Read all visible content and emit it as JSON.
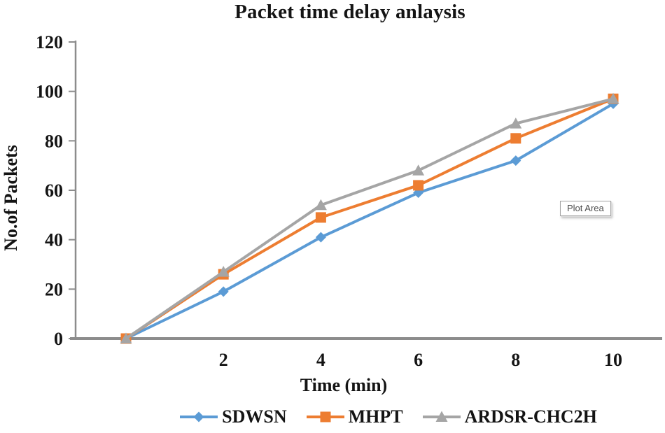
{
  "tooltip": {
    "label": "Plot Area"
  },
  "chart_data": {
    "type": "line",
    "title": "Packet time delay anlaysis",
    "xlabel": "Time (min)",
    "ylabel": "No.of Packets",
    "x": [
      0,
      2,
      4,
      6,
      8,
      10
    ],
    "xtick_labels": [
      "",
      "2",
      "4",
      "6",
      "8",
      "10"
    ],
    "yticks": [
      0,
      20,
      40,
      60,
      80,
      100,
      120
    ],
    "ylim": [
      0,
      120
    ],
    "grid": false,
    "legend_position": "bottom",
    "axis_color": "#8c8c8c",
    "text_color": "#141414",
    "series": [
      {
        "name": "SDWSN",
        "color": "#5B9BD5",
        "marker": "diamond",
        "values": [
          0,
          19,
          41,
          59,
          72,
          95
        ]
      },
      {
        "name": "MHPT",
        "color": "#ED7D31",
        "marker": "square",
        "values": [
          0,
          26,
          49,
          62,
          81,
          97
        ]
      },
      {
        "name": "ARDSR-CHC2H",
        "color": "#A5A5A5",
        "marker": "triangle",
        "values": [
          0,
          27,
          54,
          68,
          87,
          97
        ]
      }
    ]
  }
}
